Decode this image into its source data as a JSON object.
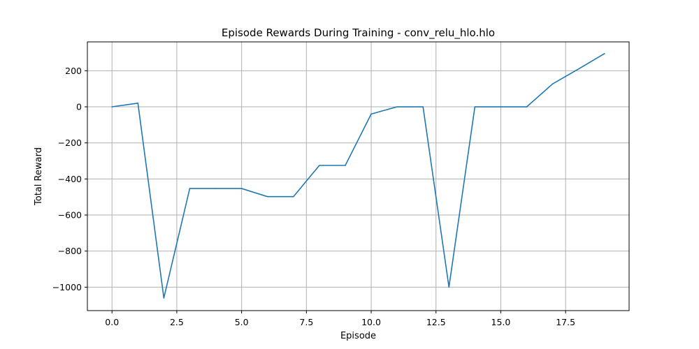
{
  "chart_data": {
    "type": "line",
    "title": "Episode Rewards During Training - conv_relu_hlo.hlo",
    "xlabel": "Episode",
    "ylabel": "Total Reward",
    "xlim": [
      -0.95,
      19.95
    ],
    "ylim": [
      -1130,
      360
    ],
    "xticks": [
      0.0,
      2.5,
      5.0,
      7.5,
      10.0,
      12.5,
      15.0,
      17.5
    ],
    "xtick_labels": [
      "0.0",
      "2.5",
      "5.0",
      "7.5",
      "10.0",
      "12.5",
      "15.0",
      "17.5"
    ],
    "yticks": [
      200,
      0,
      -200,
      -400,
      -600,
      -800,
      -1000
    ],
    "ytick_labels": [
      "200",
      "0",
      "−200",
      "−400",
      "−600",
      "−800",
      "−1000"
    ],
    "grid": true,
    "series": [
      {
        "color": "#1f77b4",
        "x": [
          0,
          1,
          2,
          3,
          4,
          5,
          6,
          7,
          8,
          9,
          10,
          11,
          12,
          13,
          14,
          15,
          16,
          17,
          18,
          19
        ],
        "y": [
          0,
          20,
          -1060,
          -453,
          -453,
          -453,
          -498,
          -498,
          -325,
          -325,
          -40,
          0,
          0,
          -1000,
          0,
          0,
          0,
          127,
          210,
          295
        ]
      }
    ]
  }
}
